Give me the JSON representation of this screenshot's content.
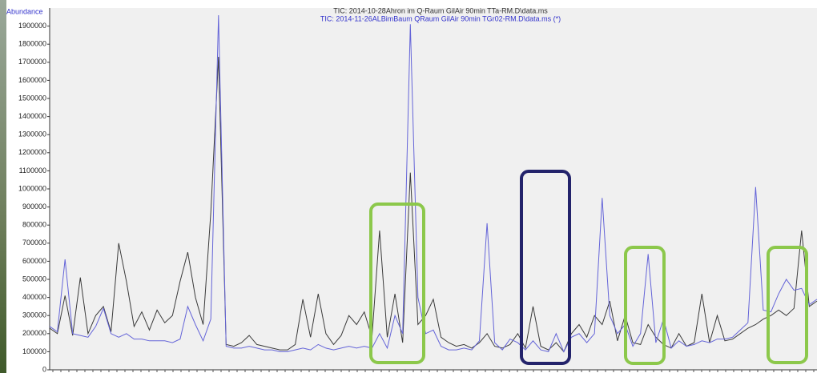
{
  "chart_data": {
    "type": "line",
    "y_label": "Abundance",
    "series": [
      {
        "name": "TIC: 2014-10-28Ahron im Q-Raum GilAir 90min TTa-RM.D\\data.ms",
        "color": "#3a3a3a",
        "values": [
          230000,
          200000,
          410000,
          190000,
          510000,
          200000,
          300000,
          350000,
          210000,
          700000,
          490000,
          240000,
          320000,
          220000,
          330000,
          260000,
          300000,
          490000,
          650000,
          400000,
          250000,
          870000,
          1730000,
          140000,
          130000,
          150000,
          190000,
          140000,
          130000,
          120000,
          110000,
          110000,
          140000,
          390000,
          180000,
          420000,
          200000,
          140000,
          190000,
          300000,
          250000,
          320000,
          180000,
          770000,
          180000,
          420000,
          150000,
          1090000,
          250000,
          300000,
          390000,
          180000,
          150000,
          130000,
          140000,
          120000,
          150000,
          200000,
          130000,
          120000,
          140000,
          200000,
          120000,
          350000,
          130000,
          110000,
          150000,
          100000,
          200000,
          250000,
          180000,
          300000,
          250000,
          380000,
          160000,
          300000,
          150000,
          140000,
          250000,
          180000,
          140000,
          120000,
          200000,
          130000,
          150000,
          420000,
          150000,
          300000,
          160000,
          170000,
          200000,
          230000,
          250000,
          280000,
          300000,
          330000,
          300000,
          340000,
          770000,
          350000,
          380000
        ]
      },
      {
        "name": "TIC: 2014-11-26ALBimBaum QRaum GilAir 90min TGr02-RM.D\\data.ms (*)",
        "color": "#6464d8",
        "values": [
          240000,
          210000,
          610000,
          200000,
          190000,
          180000,
          240000,
          340000,
          200000,
          180000,
          200000,
          170000,
          170000,
          160000,
          160000,
          160000,
          150000,
          170000,
          350000,
          250000,
          160000,
          280000,
          1960000,
          130000,
          120000,
          120000,
          130000,
          120000,
          110000,
          110000,
          100000,
          100000,
          110000,
          120000,
          110000,
          140000,
          120000,
          110000,
          120000,
          130000,
          120000,
          130000,
          120000,
          200000,
          120000,
          300000,
          200000,
          1910000,
          400000,
          200000,
          220000,
          130000,
          110000,
          110000,
          120000,
          110000,
          160000,
          810000,
          150000,
          110000,
          170000,
          150000,
          110000,
          160000,
          110000,
          100000,
          200000,
          100000,
          180000,
          200000,
          150000,
          200000,
          950000,
          300000,
          200000,
          250000,
          130000,
          200000,
          640000,
          150000,
          280000,
          120000,
          160000,
          130000,
          140000,
          160000,
          150000,
          170000,
          170000,
          180000,
          220000,
          260000,
          1010000,
          330000,
          320000,
          420000,
          500000,
          440000,
          450000,
          360000,
          390000
        ]
      }
    ],
    "ylim": [
      0,
      2000000
    ],
    "yticks": [
      0,
      100000,
      200000,
      300000,
      400000,
      500000,
      600000,
      700000,
      800000,
      900000,
      1000000,
      1100000,
      1200000,
      1300000,
      1400000,
      1500000,
      1600000,
      1700000,
      1800000,
      1900000
    ],
    "grid": false
  }
}
